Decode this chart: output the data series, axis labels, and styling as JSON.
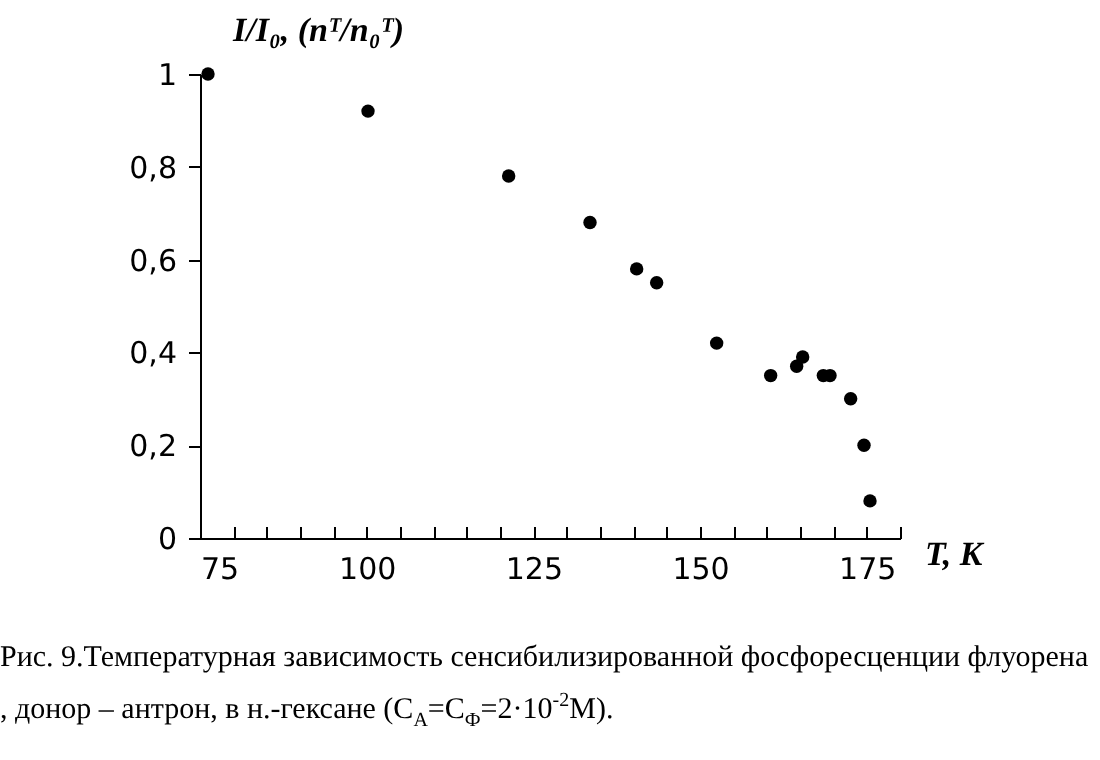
{
  "chart_data": {
    "type": "scatter",
    "xlabel": "T, K",
    "ylabel": "I/I₀, (nᵀ/n₀ᵀ)",
    "x": [
      76.2,
      100.2,
      121.3,
      133.5,
      140.5,
      143.5,
      152.5,
      160.6,
      164.5,
      165.4,
      168.5,
      169.5,
      172.6,
      174.6,
      175.5
    ],
    "series": [
      {
        "color": "#000000",
        "values": [
          1.0,
          0.92,
          0.78,
          0.68,
          0.58,
          0.55,
          0.42,
          0.35,
          0.37,
          0.39,
          0.35,
          0.35,
          0.3,
          0.2,
          0.08
        ]
      }
    ],
    "marker": "circle",
    "grid": false,
    "xlim": [
      75,
      180
    ],
    "xticks": [
      75,
      {
        "value": 80,
        "label": null
      },
      {
        "value": 85,
        "label": null
      },
      {
        "value": 90,
        "label": null
      },
      {
        "value": 95,
        "label": null
      },
      100,
      {
        "value": 105,
        "label": null
      },
      {
        "value": 110,
        "label": null
      },
      {
        "value": 115,
        "label": null
      },
      {
        "value": 120,
        "label": null
      },
      125,
      {
        "value": 130,
        "label": null
      },
      {
        "value": 135,
        "label": null
      },
      {
        "value": 140,
        "label": null
      },
      {
        "value": 145,
        "label": null
      },
      150,
      {
        "value": 155,
        "label": null
      },
      {
        "value": 160,
        "label": null
      },
      {
        "value": 165,
        "label": null
      },
      {
        "value": 170,
        "label": null
      },
      175,
      {
        "value": 180,
        "label": null
      }
    ],
    "ylim": [
      0,
      1
    ],
    "yticks": [
      0,
      {
        "value": 0.2,
        "label": "0,2"
      },
      {
        "value": 0.4,
        "label": "0,4"
      },
      {
        "value": 0.6,
        "label": "0,6"
      },
      {
        "value": 0.8,
        "label": "0,8"
      },
      1
    ],
    "annotations": [
      "Рис. 9.Температурная зависимость сенсибилизированной фосфоресценции флуорена , донор – антрон, в н.-гексане (C$_{А}$=C$_{Ф}$=2·10$^{-2}$М)."
    ]
  }
}
